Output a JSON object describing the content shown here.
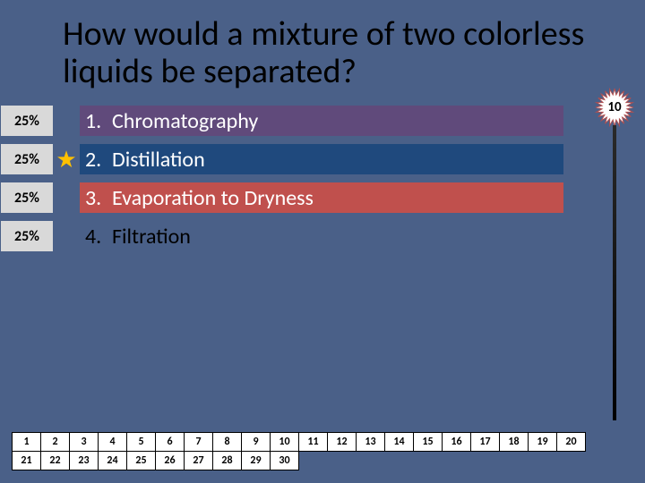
{
  "question": "How would a mixture of two colorless liquids be separated?",
  "countdown": 10,
  "answers": [
    {
      "pct": "25%",
      "num": "1.",
      "text": "Chromatography",
      "barColor": "#604a7b",
      "filled": true,
      "starred": false
    },
    {
      "pct": "25%",
      "num": "2.",
      "text": "Distillation",
      "barColor": "#1f497d",
      "filled": true,
      "starred": true
    },
    {
      "pct": "25%",
      "num": "3.",
      "text": "Evaporation to Dryness",
      "barColor": "#c0504d",
      "filled": true,
      "starred": false
    },
    {
      "pct": "25%",
      "num": "4.",
      "text": "Filtration",
      "barColor": "",
      "filled": false,
      "starred": false
    }
  ],
  "respondentGrid": {
    "columns": 20,
    "total": 30
  },
  "colors": {
    "background": "#4a6088",
    "pctBg": "#d9d9d9",
    "star": "#ffc000",
    "burstFill": "#ffffff",
    "burstStroke": "#b05050"
  }
}
